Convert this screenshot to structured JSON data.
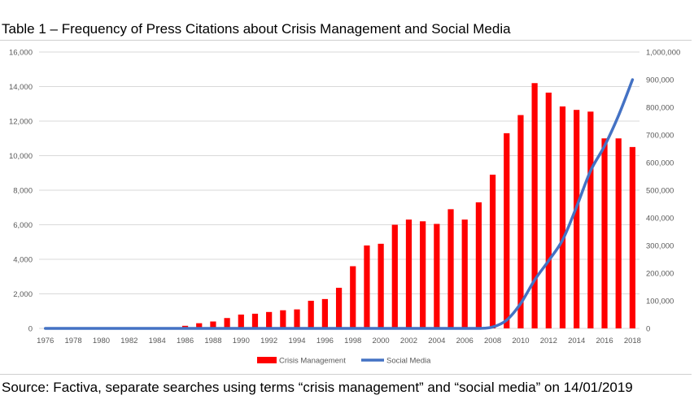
{
  "caption": "Table 1 – Frequency of Press Citations about Crisis Management and Social Media",
  "source": "Source:  Factiva, separate searches using terms “crisis management” and “social media” on 14/01/2019",
  "chart_data": {
    "type": "bar",
    "title": "",
    "xlabel": "",
    "ylabel": "",
    "years": [
      1976,
      1977,
      1978,
      1979,
      1980,
      1981,
      1982,
      1983,
      1984,
      1985,
      1986,
      1987,
      1988,
      1989,
      1990,
      1991,
      1992,
      1993,
      1994,
      1995,
      1996,
      1997,
      1998,
      1999,
      2000,
      2001,
      2002,
      2003,
      2004,
      2005,
      2006,
      2007,
      2008,
      2009,
      2010,
      2011,
      2012,
      2013,
      2014,
      2015,
      2016,
      2017,
      2018
    ],
    "x_tick_labels": [
      "1976",
      "1978",
      "1980",
      "1982",
      "1984",
      "1986",
      "1988",
      "1990",
      "1992",
      "1994",
      "1996",
      "1998",
      "2000",
      "2002",
      "2004",
      "2006",
      "2008",
      "2010",
      "2012",
      "2014",
      "2016",
      "2018"
    ],
    "left_axis": {
      "ylim": [
        0,
        16000
      ],
      "tick_labels": [
        "0",
        "2,000",
        "4,000",
        "6,000",
        "8,000",
        "10,000",
        "12,000",
        "14,000",
        "16,000"
      ]
    },
    "right_axis": {
      "ylim": [
        0,
        1000000
      ],
      "tick_labels": [
        "0",
        "100,000",
        "200,000",
        "300,000",
        "400,000",
        "500,000",
        "600,000",
        "700,000",
        "800,000",
        "900,000",
        "1,000,000"
      ]
    },
    "grid": true,
    "legend_position": "bottom",
    "series": [
      {
        "name": "Crisis Management",
        "type": "bar",
        "axis": "left",
        "color": "#ff0000",
        "values": [
          0,
          0,
          0,
          0,
          0,
          0,
          0,
          0,
          0,
          0,
          150,
          300,
          400,
          600,
          800,
          850,
          950,
          1050,
          1100,
          1600,
          1700,
          2350,
          3600,
          4800,
          4900,
          6000,
          6300,
          6200,
          6050,
          6900,
          6300,
          7300,
          8900,
          11300,
          12350,
          14200,
          13650,
          12850,
          12650,
          12550,
          11000,
          11000,
          10500
        ]
      },
      {
        "name": "Social Media",
        "type": "line",
        "axis": "right",
        "color": "#4472c4",
        "values": [
          0,
          0,
          0,
          0,
          0,
          0,
          0,
          0,
          0,
          0,
          0,
          0,
          0,
          0,
          0,
          0,
          0,
          0,
          0,
          0,
          0,
          0,
          0,
          0,
          0,
          0,
          0,
          0,
          0,
          0,
          0,
          0,
          5000,
          30000,
          90000,
          175000,
          245000,
          320000,
          440000,
          570000,
          660000,
          770000,
          900000
        ]
      }
    ]
  }
}
